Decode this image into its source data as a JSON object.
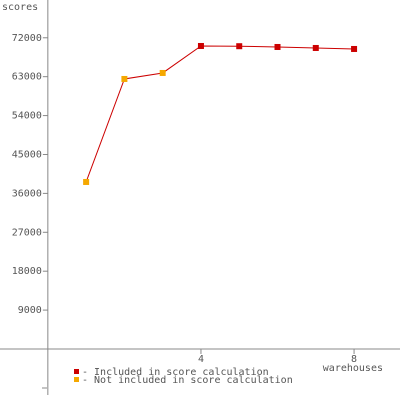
{
  "chart_data": {
    "type": "line",
    "y_label": "scores",
    "x_label": "warehouses",
    "x": [
      1,
      2,
      3,
      4,
      5,
      6,
      7,
      8
    ],
    "series": [
      {
        "color": "#cc0000",
        "values": [
          38640,
          62470,
          63860,
          70100,
          70050,
          69870,
          69640,
          69410
        ],
        "point_colors": [
          "#f5a800",
          "#f5a800",
          "#f5a800",
          "#cc0000",
          "#cc0000",
          "#cc0000",
          "#cc0000",
          "#cc0000"
        ]
      }
    ],
    "legend": [
      {
        "label": "- Included in score calculation",
        "color": "#cc0000"
      },
      {
        "label": "- Not included in score calculation",
        "color": "#f5a800"
      }
    ],
    "xlim": [
      -1.25,
      9.2
    ],
    "xticks": [
      4,
      8
    ],
    "ylim": [
      -11800,
      80740
    ],
    "yticks": [
      9000,
      18000,
      27000,
      36000,
      45000,
      54000,
      63000,
      72000
    ]
  }
}
